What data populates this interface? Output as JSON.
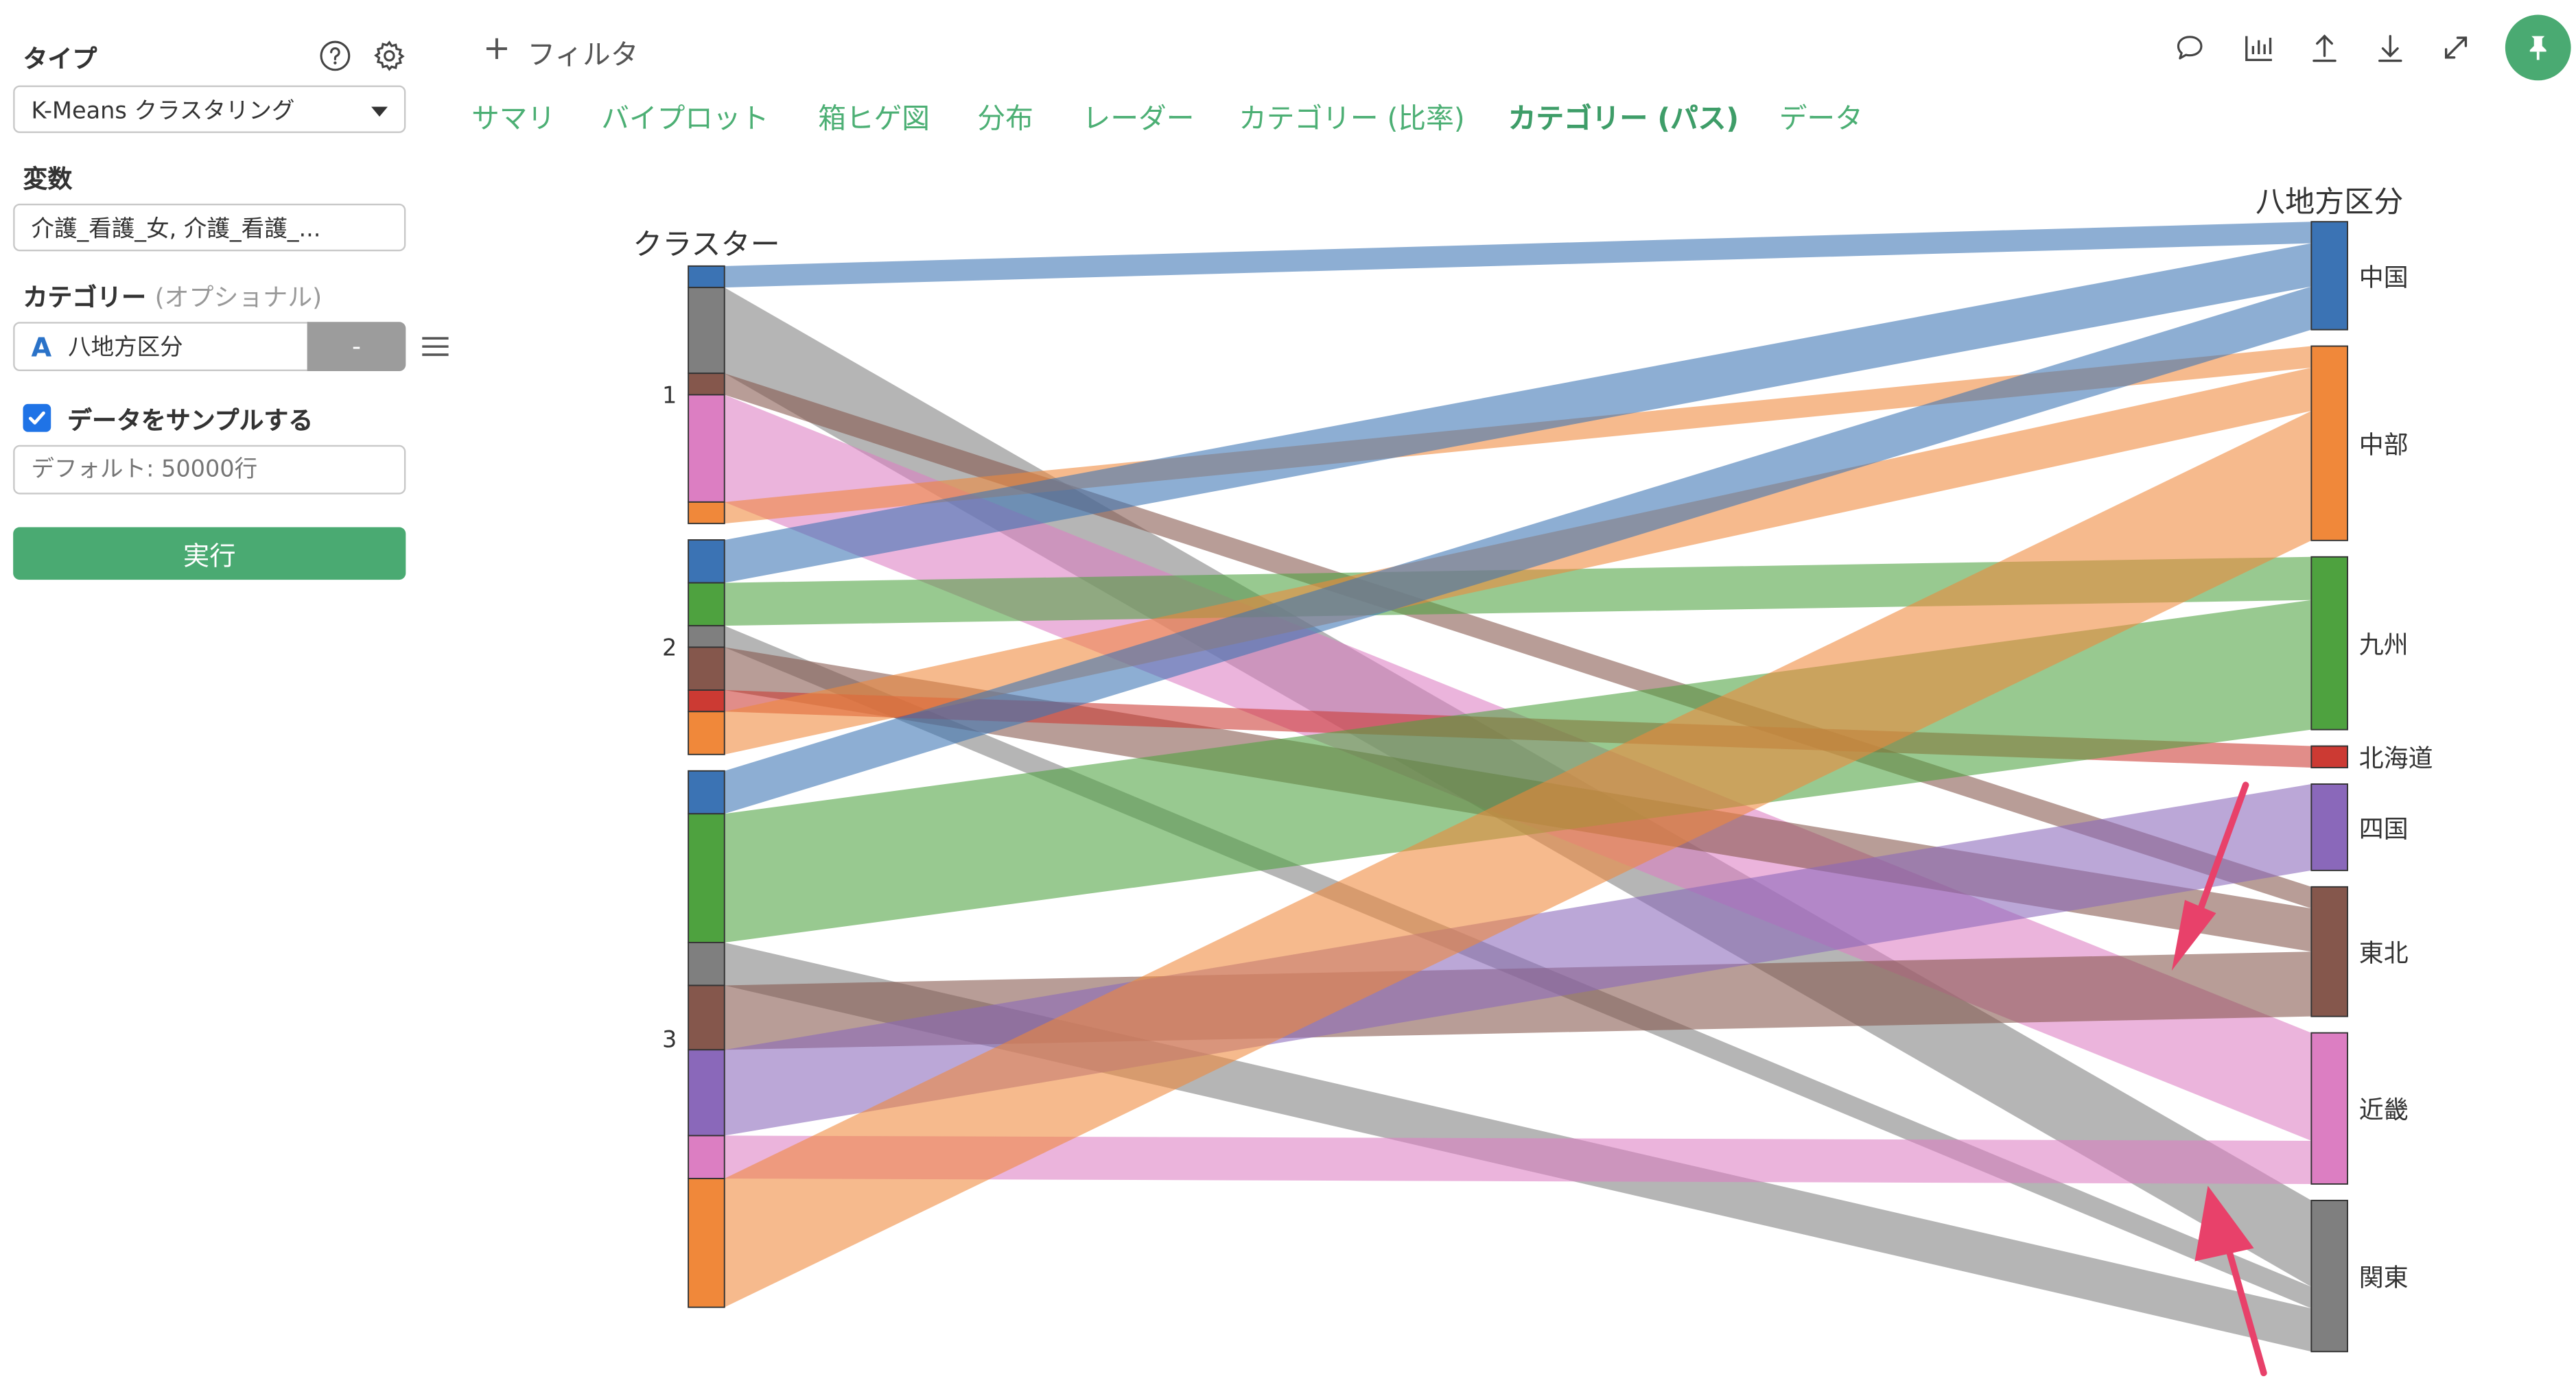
{
  "sidebar": {
    "type_label": "タイプ",
    "type_value": "K-Means クラスタリング",
    "variables_label": "変数",
    "variables_value": "介護_看護_女, 介護_看護_...",
    "category_label": "カテゴリー",
    "category_optional": "(オプショナル)",
    "category_icon": "A",
    "category_value": "八地方区分",
    "category_button": "-",
    "sample_label": "データをサンプルする",
    "sample_checked": true,
    "sample_placeholder": "デフォルト: 50000行",
    "run_label": "実行"
  },
  "toolbar": {
    "filter_plus": "+",
    "filter_label": "フィルタ"
  },
  "tabs": [
    {
      "label": "サマリ"
    },
    {
      "label": "バイプロット"
    },
    {
      "label": "箱ヒゲ図"
    },
    {
      "label": "分布"
    },
    {
      "label": "レーダー"
    },
    {
      "label": "カテゴリー (比率)"
    },
    {
      "label": "カテゴリー (パス)",
      "active": true
    },
    {
      "label": "データ"
    }
  ],
  "chart_data": {
    "type": "parallel-sets",
    "axes": [
      "クラスター",
      "八地方区分"
    ],
    "left_categories": [
      "1",
      "2",
      "3"
    ],
    "right_categories": [
      "中国",
      "中部",
      "九州",
      "北海道",
      "四国",
      "東北",
      "近畿",
      "関東"
    ],
    "colors": {
      "中国": "#3b73b4",
      "中部": "#f0883a",
      "九州": "#4ea23f",
      "北海道": "#cc3a33",
      "四国": "#8a68ba",
      "東北": "#85574c",
      "近畿": "#dc7ec2",
      "関東": "#7f7f7f"
    },
    "flows": [
      {
        "cluster": "1",
        "region": "中国",
        "value": 1
      },
      {
        "cluster": "1",
        "region": "関東",
        "value": 4
      },
      {
        "cluster": "1",
        "region": "東北",
        "value": 1
      },
      {
        "cluster": "1",
        "region": "近畿",
        "value": 5
      },
      {
        "cluster": "1",
        "region": "中部",
        "value": 1
      },
      {
        "cluster": "2",
        "region": "中国",
        "value": 2
      },
      {
        "cluster": "2",
        "region": "九州",
        "value": 2
      },
      {
        "cluster": "2",
        "region": "関東",
        "value": 1
      },
      {
        "cluster": "2",
        "region": "東北",
        "value": 2
      },
      {
        "cluster": "2",
        "region": "北海道",
        "value": 1
      },
      {
        "cluster": "2",
        "region": "中部",
        "value": 2
      },
      {
        "cluster": "3",
        "region": "中国",
        "value": 2
      },
      {
        "cluster": "3",
        "region": "九州",
        "value": 6
      },
      {
        "cluster": "3",
        "region": "関東",
        "value": 2
      },
      {
        "cluster": "3",
        "region": "東北",
        "value": 3
      },
      {
        "cluster": "3",
        "region": "四国",
        "value": 4
      },
      {
        "cluster": "3",
        "region": "近畿",
        "value": 2
      },
      {
        "cluster": "3",
        "region": "中部",
        "value": 6
      }
    ]
  },
  "annotations": {
    "arrow_color": "#e8416a"
  }
}
